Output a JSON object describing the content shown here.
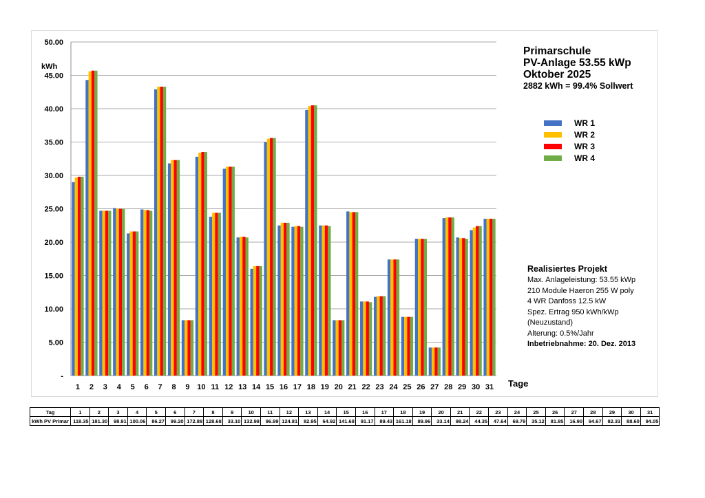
{
  "title": {
    "line1": "Primarschule",
    "line2": "PV-Anlage 53.55 kWp",
    "line3": "Oktober 2025",
    "line4": "2882 kWh = 99.4% Sollwert"
  },
  "colors": {
    "WR 1": "#4472c4",
    "WR 2": "#ffc000",
    "WR 3": "#ff0000",
    "WR 4": "#70ad47"
  },
  "project": {
    "heading": "Realisiertes Projekt",
    "lines": [
      "Max. Anlageleistung: 53.55 kWp",
      "210 Module Haeron 255 W poly",
      "4 WR Danfoss 12.5 kW",
      "Spez. Ertrag 950 kWh/kWp",
      "(Neuzustand)",
      "Alterung: 0.5%/Jahr"
    ],
    "commissioning": "Inbetriebnahme: 20. Dez. 2013"
  },
  "chart_data": {
    "type": "bar",
    "ylabel": "kWh",
    "xlabel": "Tage",
    "ylim": [
      0,
      50
    ],
    "yticks": [
      "-",
      "5.00",
      "10.00",
      "15.00",
      "20.00",
      "25.00",
      "30.00",
      "35.00",
      "40.00",
      "45.00",
      "50.00"
    ],
    "grid": true,
    "legend_position": "right",
    "categories": [
      "1",
      "2",
      "3",
      "4",
      "5",
      "6",
      "7",
      "8",
      "9",
      "10",
      "11",
      "12",
      "13",
      "14",
      "15",
      "16",
      "17",
      "18",
      "19",
      "20",
      "21",
      "22",
      "23",
      "24",
      "25",
      "26",
      "27",
      "28",
      "29",
      "30",
      "31"
    ],
    "series": [
      {
        "name": "WR 1",
        "values": [
          29.0,
          44.3,
          24.7,
          25.1,
          21.3,
          24.9,
          42.9,
          31.8,
          8.3,
          32.8,
          23.8,
          31.0,
          20.7,
          16.0,
          35.0,
          22.5,
          22.3,
          39.8,
          22.5,
          8.3,
          24.6,
          11.1,
          11.8,
          17.4,
          8.8,
          20.5,
          4.2,
          23.6,
          20.7,
          21.8,
          23.5
        ]
      },
      {
        "name": "WR 2",
        "values": [
          29.7,
          45.6,
          24.7,
          25.0,
          21.6,
          24.8,
          43.3,
          32.3,
          8.3,
          33.4,
          24.4,
          31.3,
          20.8,
          16.4,
          35.5,
          22.9,
          22.4,
          40.4,
          22.5,
          8.3,
          24.5,
          11.1,
          11.9,
          17.4,
          8.8,
          20.5,
          4.2,
          23.7,
          20.6,
          22.2,
          23.5
        ]
      },
      {
        "name": "WR 3",
        "values": [
          29.8,
          45.7,
          24.7,
          25.0,
          21.6,
          24.8,
          43.3,
          32.3,
          8.3,
          33.5,
          24.4,
          31.3,
          20.8,
          16.4,
          35.6,
          22.9,
          22.4,
          40.5,
          22.5,
          8.3,
          24.5,
          11.1,
          11.9,
          17.4,
          8.8,
          20.5,
          4.2,
          23.7,
          20.6,
          22.4,
          23.5
        ]
      },
      {
        "name": "WR 4",
        "values": [
          29.8,
          45.7,
          24.7,
          25.0,
          21.6,
          24.7,
          43.3,
          32.3,
          8.3,
          33.5,
          24.4,
          31.3,
          20.7,
          16.4,
          35.6,
          22.9,
          22.3,
          40.5,
          22.4,
          8.3,
          24.5,
          11.0,
          11.9,
          17.4,
          8.8,
          20.5,
          4.2,
          23.7,
          20.5,
          22.4,
          23.5
        ]
      }
    ]
  },
  "table": {
    "row1_label": "Tag",
    "row2_label": "kWh PV Primar",
    "days": [
      "1",
      "2",
      "3",
      "4",
      "5",
      "6",
      "7",
      "8",
      "9",
      "10",
      "11",
      "12",
      "13",
      "14",
      "15",
      "16",
      "17",
      "18",
      "19",
      "20",
      "21",
      "22",
      "23",
      "24",
      "25",
      "26",
      "27",
      "28",
      "29",
      "30",
      "31"
    ],
    "values": [
      "118.35",
      "181.30",
      "98.91",
      "100.06",
      "86.27",
      "99.20",
      "172.88",
      "128.68",
      "33.10",
      "132.98",
      "96.99",
      "124.81",
      "82.95",
      "64.92",
      "141.68",
      "91.17",
      "89.43",
      "161.18",
      "89.96",
      "33.14",
      "98.24",
      "44.35",
      "47.64",
      "69.79",
      "35.12",
      "81.85",
      "16.90",
      "94.67",
      "82.33",
      "88.60",
      "94.05"
    ]
  }
}
